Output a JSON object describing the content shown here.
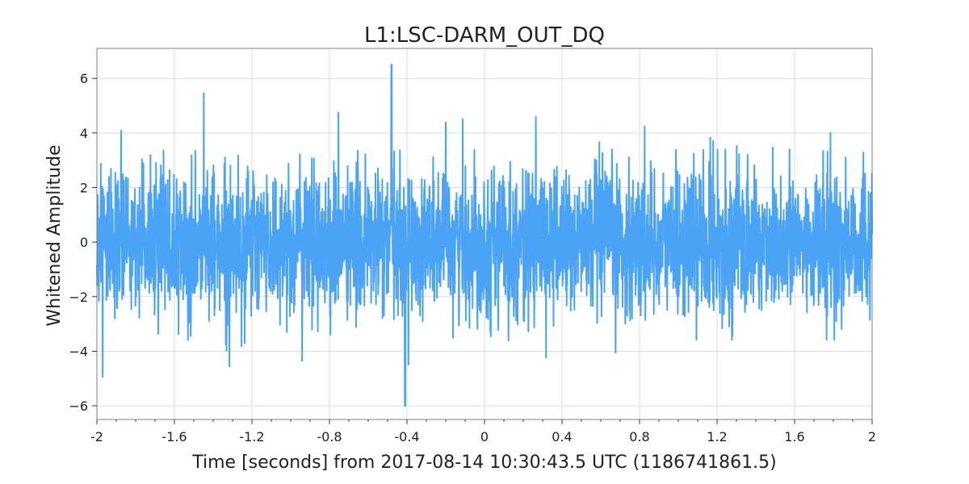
{
  "chart_data": {
    "type": "line",
    "title": "L1:LSC-DARM_OUT_DQ",
    "xlabel": "Time [seconds] from 2017-08-14 10:30:43.5 UTC (1186741861.5)",
    "ylabel": "Whitened Amplitude",
    "xlim": [
      -2,
      2
    ],
    "ylim": [
      -6.5,
      7.1
    ],
    "x_ticks": [
      -2,
      -1.6,
      -1.2,
      -0.8,
      -0.4,
      0,
      0.4,
      0.8,
      1.2,
      1.6,
      2
    ],
    "x_tick_labels": [
      "-2",
      "-1.6",
      "-1.2",
      "-0.8",
      "-0.4",
      "0",
      "0.4",
      "0.8",
      "1.2",
      "1.6",
      "2"
    ],
    "y_ticks": [
      -6,
      -4,
      -2,
      0,
      2,
      4,
      6
    ],
    "y_tick_labels": [
      "−6",
      "−4",
      "−2",
      "0",
      "2",
      "4",
      "6"
    ],
    "grid": true,
    "series": [
      {
        "color": "#4aa3f5",
        "sample_rate_hz": 4096,
        "x_start": -2,
        "x_end": 2,
        "envelope": {
          "typical_peak": 4.2,
          "max": 6.5,
          "min": -6.0,
          "max_at": -0.48,
          "min_at": -0.41
        }
      }
    ]
  }
}
